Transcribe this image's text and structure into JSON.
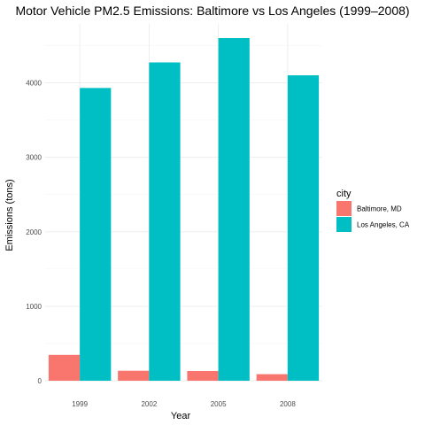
{
  "chart_data": {
    "type": "bar",
    "title": "Motor Vehicle PM2.5 Emissions: Baltimore vs Los Angeles (1999–2008)",
    "xlabel": "Year",
    "ylabel": "Emissions (tons)",
    "categories": [
      "1999",
      "2002",
      "2005",
      "2008"
    ],
    "series": [
      {
        "name": "Baltimore, MD",
        "color": "#F8766D",
        "values": [
          347,
          134,
          131,
          88
        ]
      },
      {
        "name": "Los Angeles, CA",
        "color": "#00BFC4",
        "values": [
          3931,
          4274,
          4601,
          4101
        ]
      }
    ],
    "ylim": [
      0,
      4601
    ],
    "yticks": [
      0,
      1000,
      2000,
      3000,
      4000
    ],
    "ytick_labels": [
      "0",
      "1000",
      "2000",
      "3000",
      "4000"
    ],
    "grid": true,
    "legend": {
      "title": "city",
      "placement": "right"
    }
  }
}
